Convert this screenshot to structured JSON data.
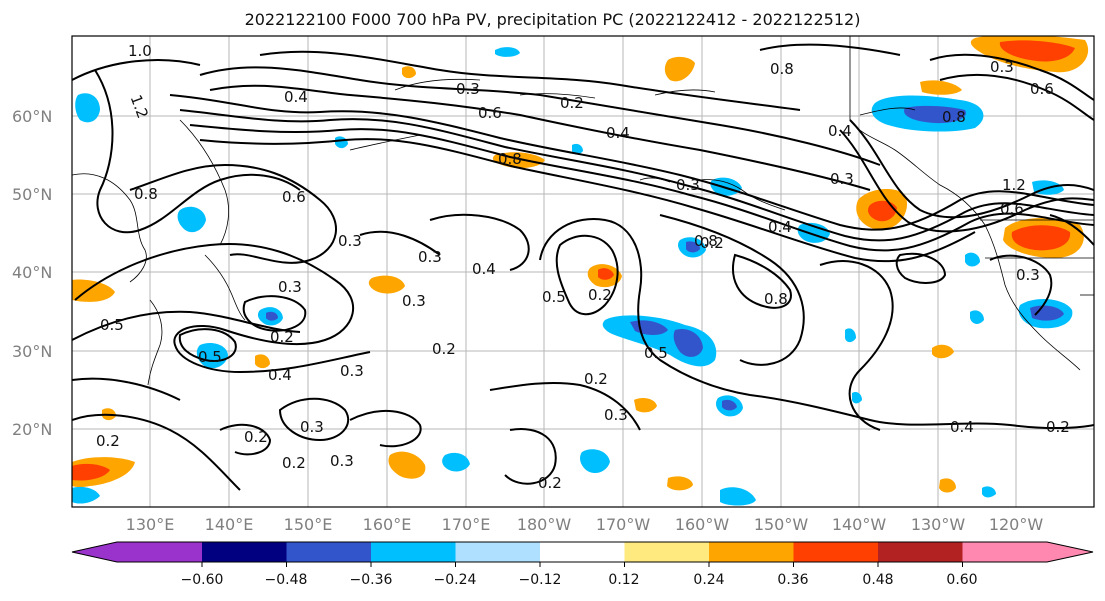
{
  "title": "2022122100 F000 700 hPa PV, precipitation PC (2022122412 - 2022122512)",
  "lat_labels": [
    "60°N",
    "50°N",
    "40°N",
    "30°N",
    "20°N"
  ],
  "lon_labels": [
    "130°E",
    "140°E",
    "150°E",
    "160°E",
    "170°E",
    "180°W",
    "170°W",
    "160°W",
    "150°W",
    "140°W",
    "130°W",
    "120°W"
  ],
  "colorbar": {
    "ticks": [
      "−0.60",
      "−0.48",
      "−0.36",
      "−0.24",
      "−0.12",
      "0.12",
      "0.24",
      "0.36",
      "0.48",
      "0.60"
    ],
    "colors": [
      "#9933cc",
      "#000080",
      "#3355cc",
      "#00bfff",
      "#b0e0ff",
      "#ffffff",
      "#ffea80",
      "#ffa500",
      "#ff4000",
      "#b22222",
      "#ff88b0"
    ]
  },
  "contour_labels": [
    "1.0",
    "1.2",
    "0.4",
    "0.8",
    "0.3",
    "0.6",
    "0.2",
    "0.4",
    "0.8",
    "0.8",
    "0.4",
    "0.3",
    "0.8",
    "0.6",
    "0.4",
    "0.3",
    "0.3",
    "0.4",
    "0.2",
    "0.8",
    "0.3",
    "0.3",
    "0.5",
    "0.2",
    "0.5",
    "0.4",
    "0.3",
    "0.2",
    "0.5",
    "0.2",
    "0.3",
    "0.2",
    "0.2",
    "0.3",
    "0.2",
    "0.2",
    "0.3",
    "0.4",
    "0.2",
    "0.2",
    "1.2",
    "0.6",
    "0.3",
    "0.3",
    "0.3",
    "0.8",
    "0.6",
    "0.5"
  ]
}
